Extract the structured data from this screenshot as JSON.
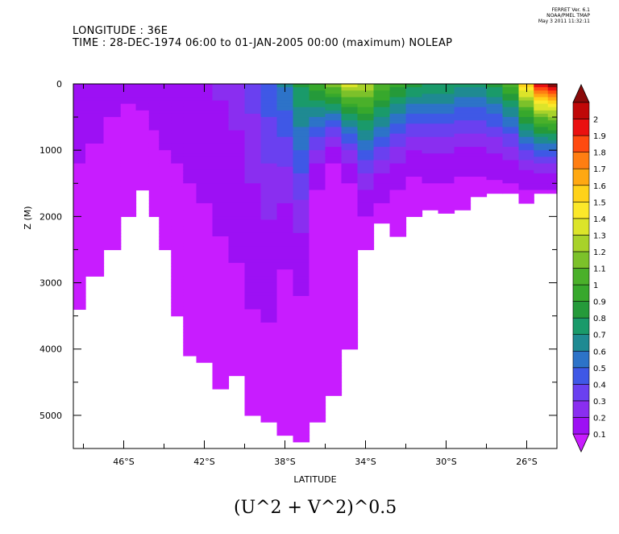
{
  "header": {
    "line1": "LONGITUDE : 36E",
    "line2": "TIME : 28-DEC-1974 06:00 to 01-JAN-2005 00:00 (maximum) NOLEAP"
  },
  "ferret_stamp": {
    "line1": "FERRET Ver. 6.1",
    "line2": "NOAA/PMEL TMAP",
    "line3": "May  3 2011 11:32:11"
  },
  "chart_data": {
    "type": "heatmap",
    "title": "(U^2 + V^2)^0.5",
    "xlabel": "LATITUDE",
    "ylabel": "Z (M)",
    "xlim": [
      -48.5,
      -24.5
    ],
    "ylim": [
      5500,
      0
    ],
    "x_ticks": [
      -46,
      -42,
      -38,
      -34,
      -30,
      -26
    ],
    "x_tick_labels": [
      "46°S",
      "42°S",
      "38°S",
      "34°S",
      "30°S",
      "26°S"
    ],
    "y_ticks": [
      0,
      1000,
      2000,
      3000,
      4000,
      5000
    ],
    "y_tick_labels": [
      "0",
      "1000",
      "2000",
      "3000",
      "4000",
      "5000"
    ],
    "colorbar": {
      "levels": [
        0.1,
        0.2,
        0.3,
        0.4,
        0.5,
        0.6,
        0.7,
        0.8,
        0.9,
        1,
        1.1,
        1.2,
        1.3,
        1.4,
        1.5,
        1.6,
        1.7,
        1.8,
        1.9,
        2
      ],
      "labels": [
        "0.1",
        "0.2",
        "0.3",
        "0.4",
        "0.5",
        "0.6",
        "0.7",
        "0.8",
        "0.9",
        "1",
        "1.1",
        "1.2",
        "1.3",
        "1.4",
        "1.5",
        "1.6",
        "1.7",
        "1.8",
        "1.9",
        "2"
      ],
      "colors": [
        "#9d10f4",
        "#8a2ef0",
        "#6a40f0",
        "#3f58e6",
        "#2d73c8",
        "#1f8a92",
        "#1a9a6a",
        "#259a3a",
        "#37a82c",
        "#4ab02a",
        "#7cc12a",
        "#a8d22a",
        "#dce42a",
        "#fbe82a",
        "#ffd21a",
        "#ffa812",
        "#ff7e12",
        "#ff4a10",
        "#ea1010",
        "#c00808"
      ],
      "under_color": "#c81cff",
      "over_color": "#8a0a0a"
    },
    "profiles": [
      {
        "lat": -48.3,
        "bottom": 3400,
        "peak": 0.12,
        "core_top": 1200
      },
      {
        "lat": -47.5,
        "bottom": 2900,
        "peak": 0.13,
        "core_top": 900
      },
      {
        "lat": -46.5,
        "bottom": 2500,
        "peak": 0.14,
        "core_top": 500
      },
      {
        "lat": -45.8,
        "bottom": 2000,
        "peak": 0.15,
        "core_top": 300
      },
      {
        "lat": -45.0,
        "bottom": 1600,
        "peak": 0.16,
        "core_top": 400
      },
      {
        "lat": -44.5,
        "bottom": 2000,
        "peak": 0.16,
        "core_top": 700
      },
      {
        "lat": -44.0,
        "bottom": 2500,
        "peak": 0.17,
        "core_top": 1000
      },
      {
        "lat": -43.3,
        "bottom": 3500,
        "peak": 0.18,
        "core_top": 1200
      },
      {
        "lat": -42.8,
        "bottom": 4100,
        "peak": 0.19,
        "core_top": 1500
      },
      {
        "lat": -42.0,
        "bottom": 4200,
        "peak": 0.2,
        "core_top": 1800
      },
      {
        "lat": -41.2,
        "bottom": 4600,
        "peak": 0.22,
        "core_top": 2300
      },
      {
        "lat": -40.4,
        "bottom": 4400,
        "peak": 0.26,
        "core_top": 2700
      },
      {
        "lat": -39.6,
        "bottom": 5000,
        "peak": 0.35,
        "core_top": 3400
      },
      {
        "lat": -38.8,
        "bottom": 5100,
        "peak": 0.48,
        "core_top": 3600
      },
      {
        "lat": -38.0,
        "bottom": 5300,
        "peak": 0.62,
        "core_top": 2800
      },
      {
        "lat": -37.2,
        "bottom": 5400,
        "peak": 0.82,
        "core_top": 3200
      },
      {
        "lat": -36.4,
        "bottom": 5100,
        "peak": 1.0,
        "core_top": 1600
      },
      {
        "lat": -35.6,
        "bottom": 4700,
        "peak": 1.2,
        "core_top": 1200
      },
      {
        "lat": -34.8,
        "bottom": 4000,
        "peak": 1.35,
        "core_top": 1500
      },
      {
        "lat": -34.0,
        "bottom": 2500,
        "peak": 1.3,
        "core_top": 2000
      },
      {
        "lat": -33.2,
        "bottom": 2100,
        "peak": 1.1,
        "core_top": 1800
      },
      {
        "lat": -32.4,
        "bottom": 2300,
        "peak": 0.95,
        "core_top": 1600
      },
      {
        "lat": -31.6,
        "bottom": 2000,
        "peak": 0.85,
        "core_top": 1400
      },
      {
        "lat": -30.8,
        "bottom": 1900,
        "peak": 0.8,
        "core_top": 1500
      },
      {
        "lat": -30.0,
        "bottom": 1950,
        "peak": 0.8,
        "core_top": 1500
      },
      {
        "lat": -29.2,
        "bottom": 1900,
        "peak": 0.75,
        "core_top": 1400
      },
      {
        "lat": -28.4,
        "bottom": 1700,
        "peak": 0.75,
        "core_top": 1400
      },
      {
        "lat": -27.6,
        "bottom": 1650,
        "peak": 0.85,
        "core_top": 1450
      },
      {
        "lat": -26.8,
        "bottom": 1650,
        "peak": 1.05,
        "core_top": 1500
      },
      {
        "lat": -26.0,
        "bottom": 1800,
        "peak": 1.55,
        "core_top": 1600
      },
      {
        "lat": -25.3,
        "bottom": 1650,
        "peak": 1.95,
        "core_top": 1600
      },
      {
        "lat": -24.6,
        "bottom": 1650,
        "peak": 2.05,
        "core_top": 1600
      }
    ]
  }
}
